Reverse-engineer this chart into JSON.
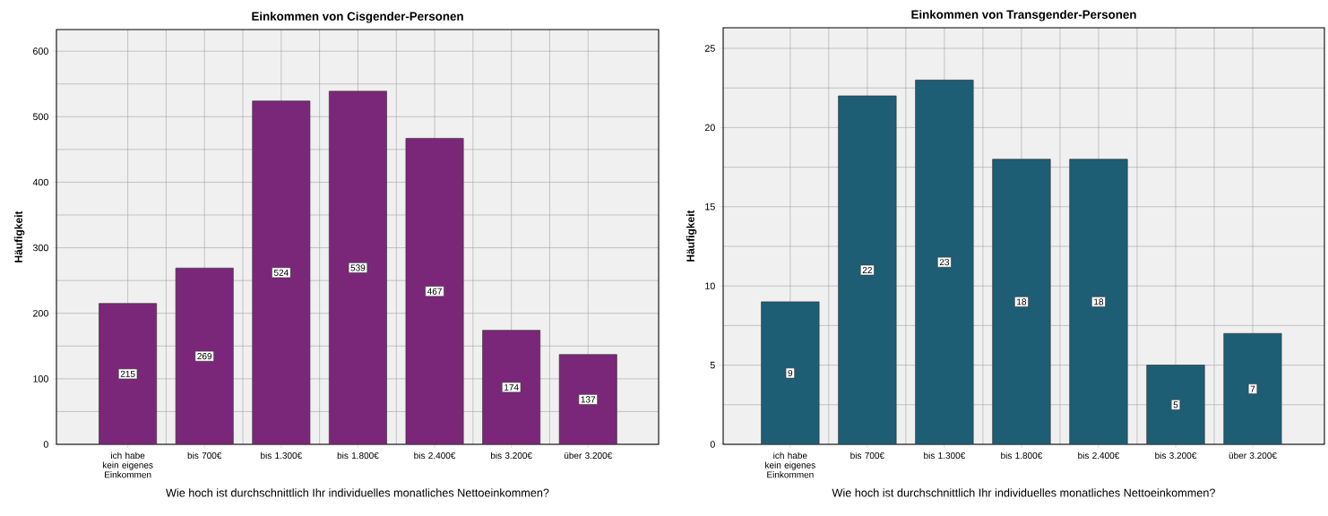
{
  "chart_data": [
    {
      "type": "bar",
      "title": "Einkommen von Cisgender-Personen",
      "xlabel": "Wie hoch ist durchschnittlich Ihr individuelles monatliches Nettoeinkommen?",
      "ylabel": "Häufigkeit",
      "categories": [
        "ich habe kein eigenes Einkommen",
        "bis 700€",
        "bis 1.300€",
        "bis 1.800€",
        "bis 2.400€",
        "bis 3.200€",
        "über 3.200€"
      ],
      "values": [
        215,
        269,
        524,
        539,
        467,
        174,
        137
      ],
      "color": "#7b2779",
      "ylim": [
        0,
        633
      ],
      "yticks": [
        0,
        100,
        200,
        300,
        400,
        500,
        600
      ],
      "grid": true,
      "data_labels": true
    },
    {
      "type": "bar",
      "title": "Einkommen von Transgender-Personen",
      "xlabel": "Wie hoch ist durchschnittlich Ihr individuelles monatliches Nettoeinkommen?",
      "ylabel": "Häufigkeit",
      "categories": [
        "ich habe kein eigenes Einkommen",
        "bis 700€",
        "bis 1.300€",
        "bis 1.800€",
        "bis 2.400€",
        "bis 3.200€",
        "über 3.200€"
      ],
      "values": [
        9,
        22,
        23,
        18,
        18,
        5,
        7
      ],
      "color": "#1d5e75",
      "ylim": [
        0,
        26.3
      ],
      "yticks": [
        0,
        5,
        10,
        15,
        20,
        25
      ],
      "grid": true,
      "data_labels": true
    }
  ]
}
